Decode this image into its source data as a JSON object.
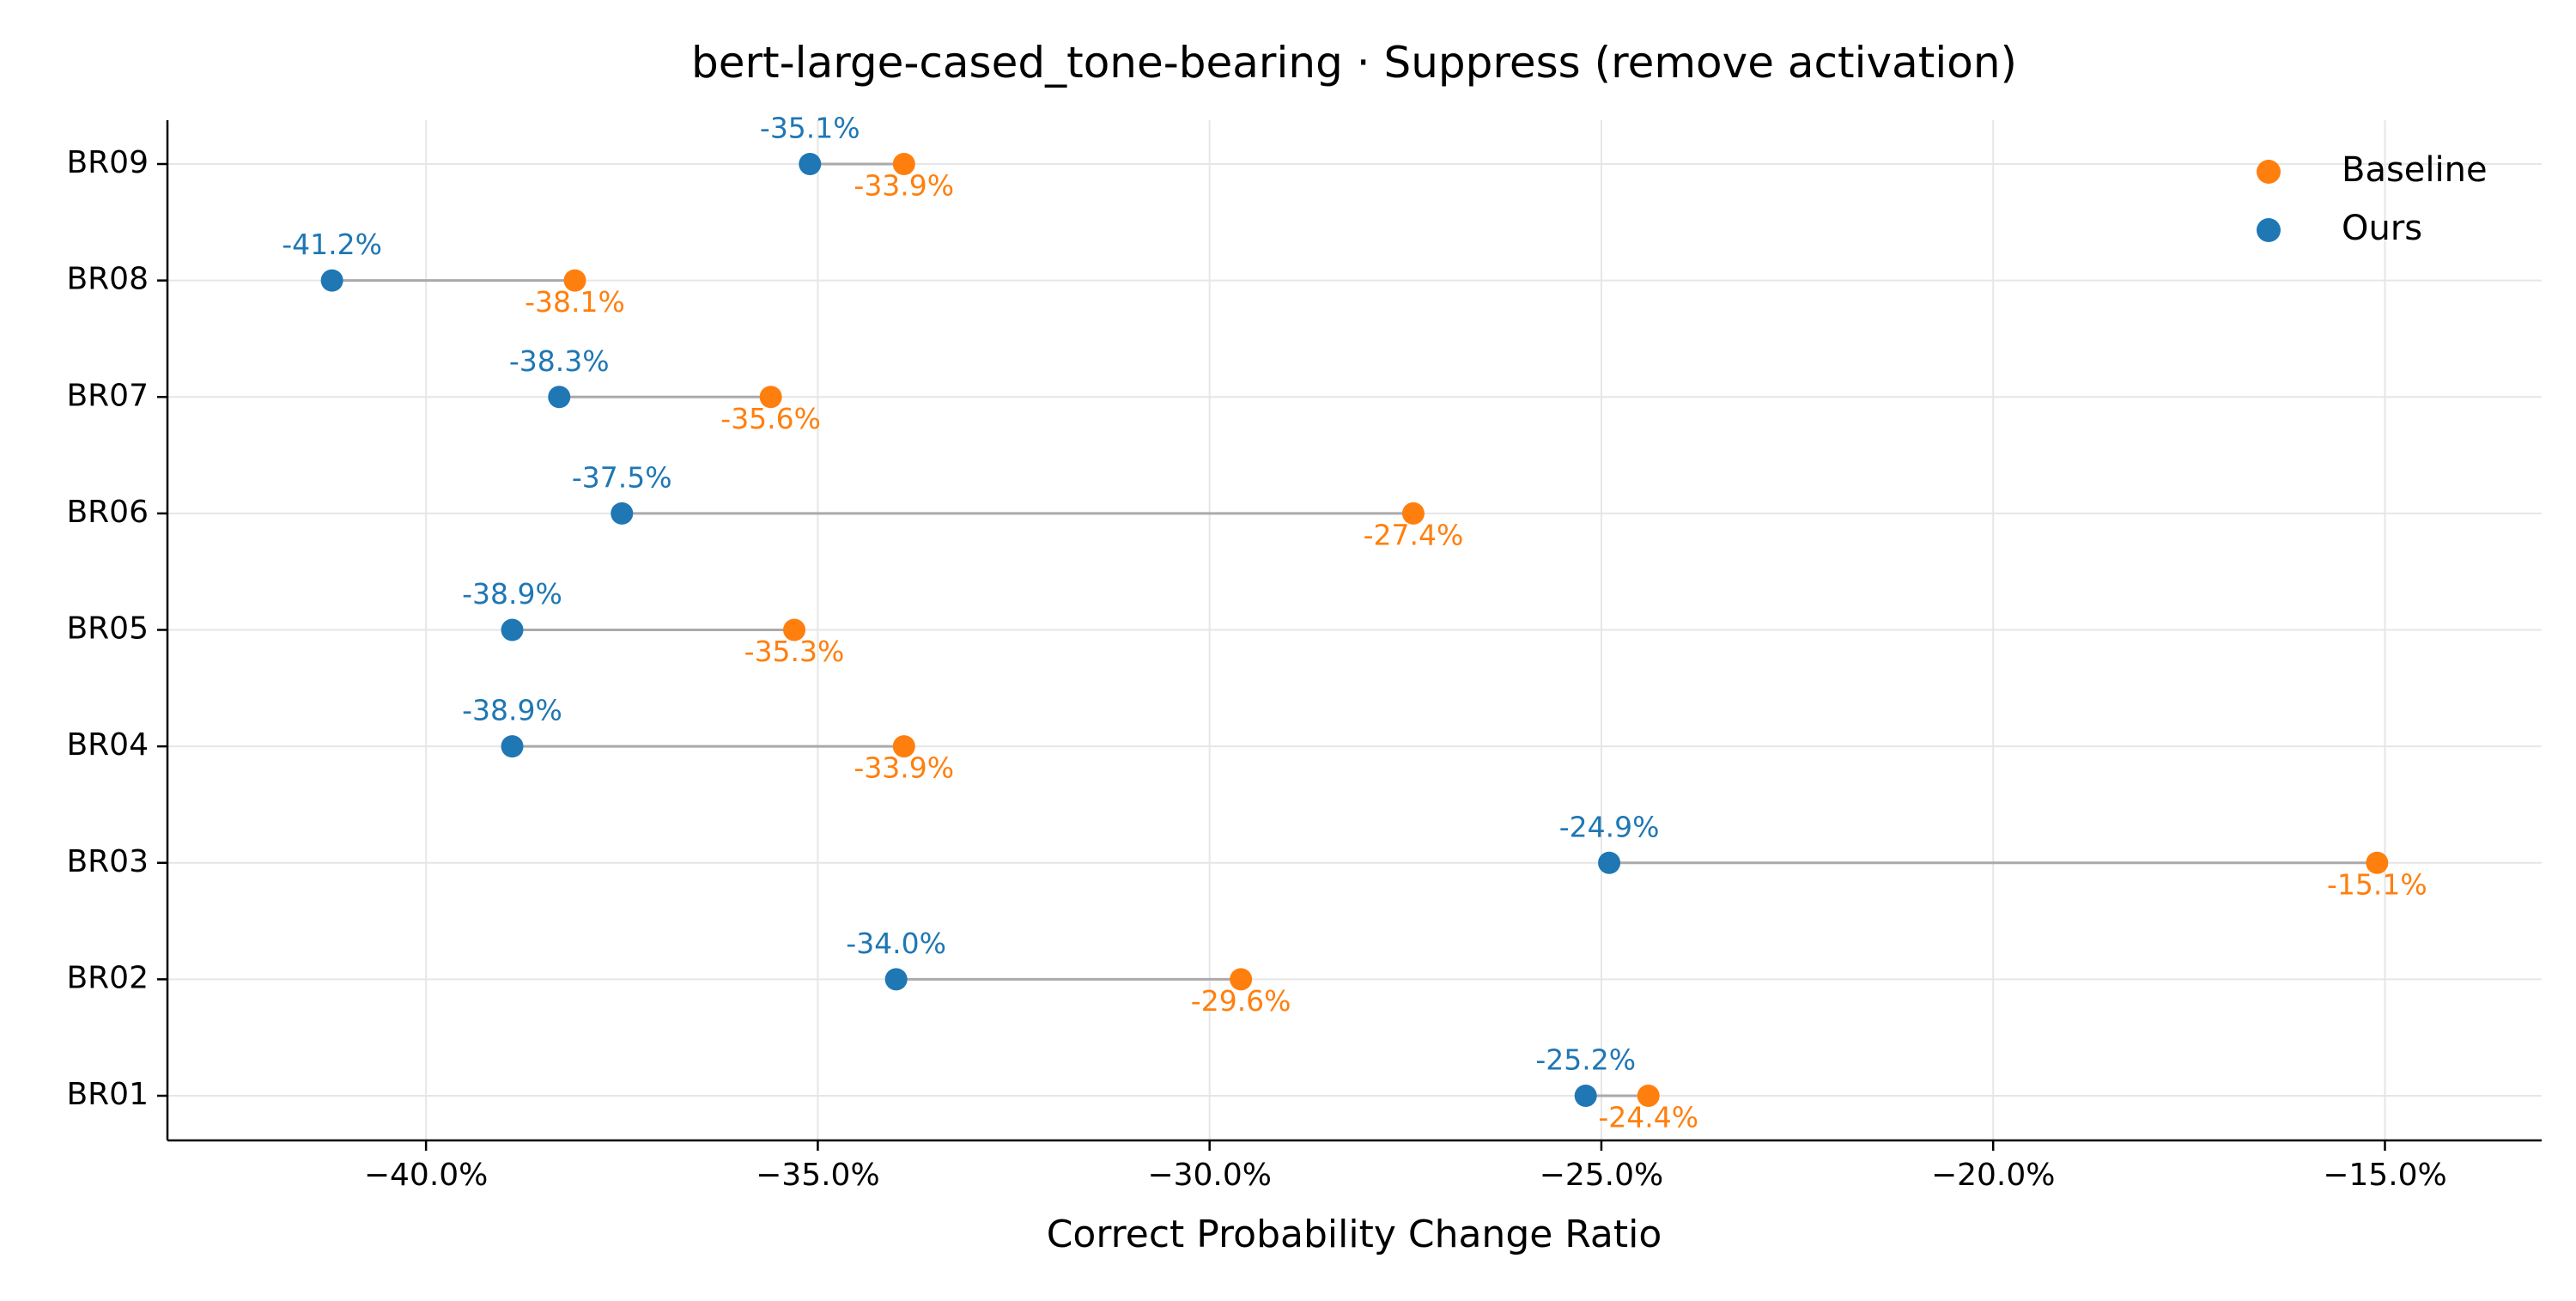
{
  "chart_data": {
    "type": "dumbbell",
    "title": "bert-large-cased_tone-bearing · Suppress (remove activation)",
    "xlabel": "Correct Probability Change Ratio",
    "ylabel": "",
    "xlim": [
      -43.3,
      -13.0
    ],
    "x_ticks": [
      -40,
      -35,
      -30,
      -25,
      -20,
      -15
    ],
    "x_tick_labels": [
      "−40.0%",
      "−35.0%",
      "−30.0%",
      "−25.0%",
      "−20.0%",
      "−15.0%"
    ],
    "categories": [
      "BR01",
      "BR02",
      "BR03",
      "BR04",
      "BR05",
      "BR06",
      "BR07",
      "BR08",
      "BR09"
    ],
    "series": [
      {
        "name": "Baseline",
        "color": "#ff7f0e",
        "values": [
          -24.4,
          -29.6,
          -15.1,
          -33.9,
          -35.3,
          -27.4,
          -35.6,
          -38.1,
          -33.9
        ],
        "labels": [
          "-24.4%",
          "-29.6%",
          "-15.1%",
          "-33.9%",
          "-35.3%",
          "-27.4%",
          "-35.6%",
          "-38.1%",
          "-33.9%"
        ]
      },
      {
        "name": "Ours",
        "color": "#1f77b4",
        "values": [
          -25.2,
          -34.0,
          -24.9,
          -38.9,
          -38.9,
          -37.5,
          -38.3,
          -41.2,
          -35.1
        ],
        "labels": [
          "-25.2%",
          "-34.0%",
          "-24.9%",
          "-38.9%",
          "-38.9%",
          "-37.5%",
          "-38.3%",
          "-41.2%",
          "-35.1%"
        ]
      }
    ],
    "connector_color": "#aaaaaa",
    "grid": true,
    "legend_position": "top-right"
  }
}
